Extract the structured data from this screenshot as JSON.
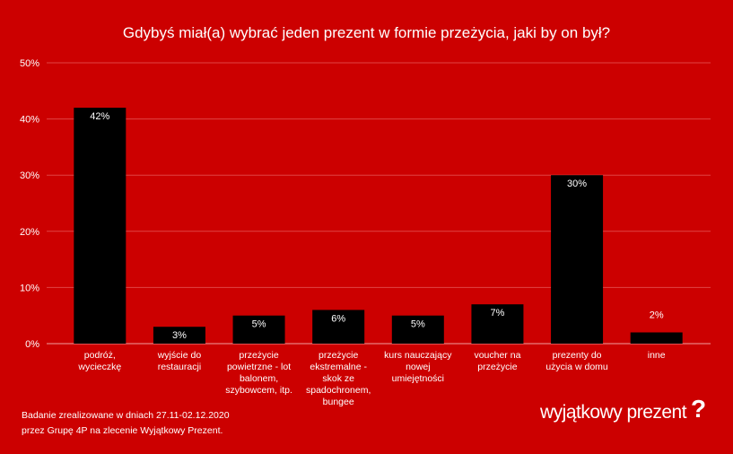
{
  "chart_data": {
    "type": "bar",
    "title": "Gdybyś miał(a) wybrać jeden prezent w formie przeżycia, jaki by on był?",
    "categories": [
      [
        "podróż,",
        "wycieczkę"
      ],
      [
        "wyjście do",
        "restauracji"
      ],
      [
        "przeżycie",
        "powietrzne - lot",
        "balonem,",
        "szybowcem, itp."
      ],
      [
        "przeżycie",
        "ekstremalne -",
        "skok ze",
        "spadochronem,",
        "bungee"
      ],
      [
        "kurs nauczający",
        "nowej",
        "umiejętności"
      ],
      [
        "voucher na",
        "przeżycie"
      ],
      [
        "prezenty do",
        "użycia w domu"
      ],
      [
        "inne"
      ]
    ],
    "values": [
      42,
      3,
      5,
      6,
      5,
      7,
      30,
      2
    ],
    "data_labels": [
      "42%",
      "3%",
      "5%",
      "6%",
      "5%",
      "7%",
      "30%",
      "2%"
    ],
    "yticks": [
      "0%",
      "10%",
      "20%",
      "30%",
      "40%",
      "50%"
    ],
    "ylim": [
      0,
      50
    ],
    "grid": true,
    "colors": {
      "background": "#cc0000",
      "bar": "#000000",
      "grid": "#e04444",
      "text": "#ffffff"
    }
  },
  "footer": {
    "line1": "Badanie zrealizowane w dniach 27.11-02.12.2020",
    "line2": "przez Grupę 4P na zlecenie Wyjątkowy Prezent."
  },
  "logo": {
    "text": "wyjątkowy prezent",
    "mark": "?"
  }
}
